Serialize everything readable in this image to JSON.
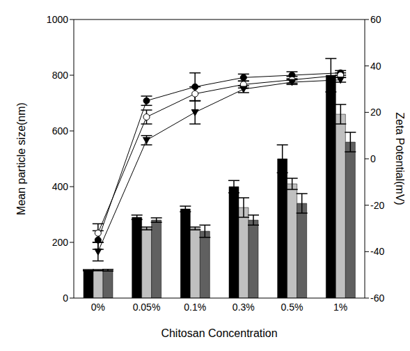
{
  "chart_data": {
    "type": "bar",
    "xlabel": "Chitosan Concentration",
    "ylabel": "Mean particle size(nm)",
    "y2label": "Zeta Potential(mV)",
    "categories": [
      "0%",
      "0.05%",
      "0.1%",
      "0.3%",
      "0.5%",
      "1%"
    ],
    "ylim": [
      0,
      1000
    ],
    "yticks": [
      0,
      200,
      400,
      600,
      800,
      1000
    ],
    "y2lim": [
      -60,
      60
    ],
    "y2ticks": [
      -60,
      -40,
      -20,
      0,
      20,
      40,
      60
    ],
    "series": [
      {
        "type": "bar",
        "color": "#000000",
        "values": [
          100,
          290,
          320,
          400,
          500,
          800
        ],
        "errors": [
          2,
          8,
          10,
          22,
          50,
          60
        ]
      },
      {
        "type": "bar",
        "color": "#c0c0c0",
        "values": [
          100,
          250,
          250,
          325,
          410,
          660
        ],
        "errors": [
          2,
          5,
          5,
          35,
          20,
          35
        ]
      },
      {
        "type": "bar",
        "color": "#606060",
        "values": [
          100,
          280,
          240,
          280,
          340,
          560
        ],
        "errors": [
          3,
          8,
          22,
          18,
          35,
          35
        ]
      },
      {
        "type": "line",
        "axis": "y2",
        "color": "#000000",
        "marker": "circle",
        "values": [
          -35,
          25,
          31,
          35,
          36,
          37
        ],
        "errors": [
          4,
          2,
          6,
          1.5,
          1.5,
          1
        ]
      },
      {
        "type": "line",
        "axis": "y2",
        "color": "#000000",
        "marker": "circle_open",
        "values": [
          -32,
          18,
          28,
          32,
          34,
          36
        ],
        "errors": [
          4,
          3,
          3,
          1.5,
          1.5,
          1
        ]
      },
      {
        "type": "line",
        "axis": "y2",
        "color": "#000000",
        "marker": "triangle_down",
        "values": [
          -40,
          8,
          20,
          30,
          33,
          34
        ],
        "errors": [
          4,
          2,
          5,
          1.5,
          1,
          1
        ]
      }
    ]
  }
}
